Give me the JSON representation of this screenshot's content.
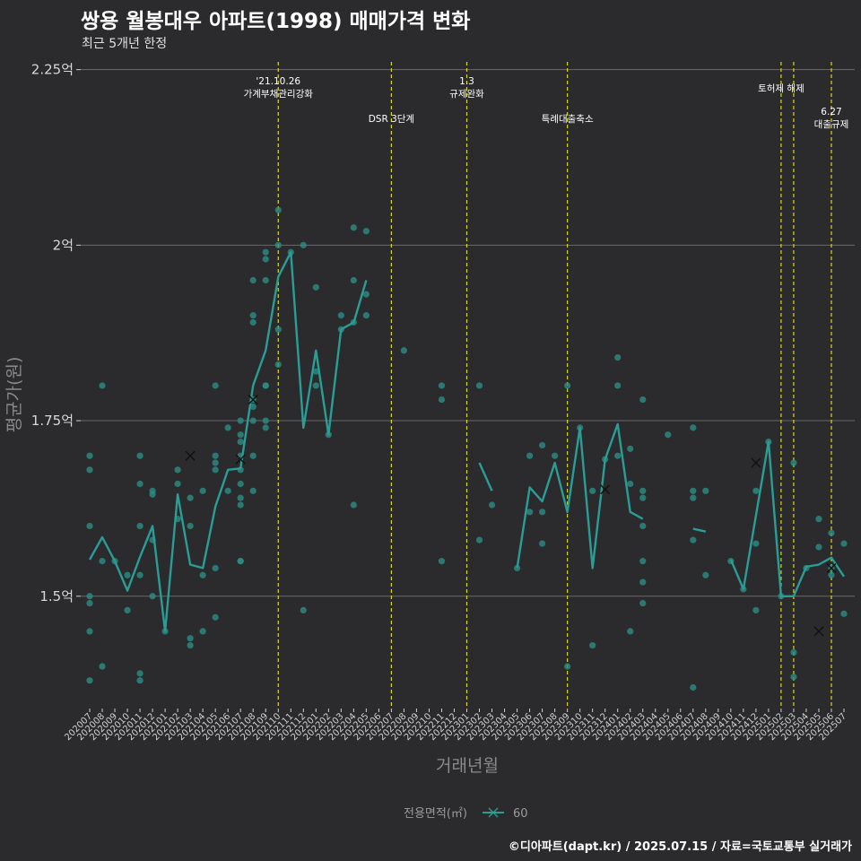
{
  "header": {
    "title": "쌍용 월봉대우 아파트(1998) 매매가격 변화",
    "subtitle": "최근 5개년 한정"
  },
  "footer": {
    "caption": "©디아파트(dapt.kr) / 2025.07.15 / 자료=국토교통부 실거래가"
  },
  "colors": {
    "background": "#2b2b2d",
    "series": "#2a9d96",
    "points": "#2a8f85",
    "event_line": "#d8d820",
    "grid": "#6a6a6a"
  },
  "chart_data": {
    "type": "line",
    "xlabel": "거래년월",
    "ylabel": "평균가(원)",
    "ylim": [
      1.34,
      2.27
    ],
    "yticks": [
      {
        "value": 1.5,
        "label": "1.5억"
      },
      {
        "value": 1.75,
        "label": "1.75억"
      },
      {
        "value": 2.0,
        "label": "2억"
      },
      {
        "value": 2.25,
        "label": "2.25억"
      }
    ],
    "grid": "horizontal",
    "legend": {
      "title": "전용면적(㎡)",
      "label": "60",
      "placement": "bottom"
    },
    "months": [
      "202007",
      "202008",
      "202009",
      "202010",
      "202011",
      "202012",
      "202101",
      "202102",
      "202103",
      "202104",
      "202105",
      "202106",
      "202107",
      "202108",
      "202109",
      "202110",
      "202111",
      "202112",
      "202201",
      "202202",
      "202203",
      "202204",
      "202205",
      "202206",
      "202207",
      "202208",
      "202209",
      "202210",
      "202211",
      "202212",
      "202301",
      "202302",
      "202303",
      "202304",
      "202305",
      "202306",
      "202307",
      "202308",
      "202309",
      "202310",
      "202311",
      "202312",
      "202401",
      "202402",
      "202403",
      "202404",
      "202405",
      "202406",
      "202407",
      "202408",
      "202409",
      "202410",
      "202411",
      "202412",
      "202501",
      "202502",
      "202503",
      "202504",
      "202505",
      "202506",
      "202507"
    ],
    "series": [
      {
        "name": "60",
        "segments": [
          [
            [
              "202007",
              1.552
            ],
            [
              "202008",
              1.584
            ],
            [
              "202009",
              1.55
            ],
            [
              "202010",
              1.508
            ],
            [
              "202011",
              1.556
            ],
            [
              "202012",
              1.6
            ],
            [
              "202101",
              1.45
            ],
            [
              "202102",
              1.645
            ],
            [
              "202103",
              1.545
            ],
            [
              "202104",
              1.54
            ],
            [
              "202105",
              1.628
            ],
            [
              "202106",
              1.68
            ],
            [
              "202107",
              1.682
            ],
            [
              "202108",
              1.8
            ],
            [
              "202109",
              1.85
            ],
            [
              "202110",
              1.955
            ],
            [
              "202111",
              1.99
            ],
            [
              "202112",
              1.74
            ],
            [
              "202201",
              1.85
            ],
            [
              "202202",
              1.73
            ],
            [
              "202203",
              1.88
            ],
            [
              "202204",
              1.89
            ],
            [
              "202205",
              1.95
            ]
          ],
          [
            [
              "202302",
              1.69
            ],
            [
              "202303",
              1.65
            ]
          ],
          [
            [
              "202305",
              1.54
            ],
            [
              "202306",
              1.655
            ],
            [
              "202307",
              1.635
            ],
            [
              "202308",
              1.69
            ],
            [
              "202309",
              1.62
            ],
            [
              "202310",
              1.74
            ],
            [
              "202311",
              1.54
            ],
            [
              "202312",
              1.695
            ],
            [
              "202401",
              1.745
            ],
            [
              "202402",
              1.62
            ],
            [
              "202403",
              1.61
            ]
          ],
          [
            [
              "202407",
              1.596
            ],
            [
              "202408",
              1.592
            ]
          ],
          [
            [
              "202410",
              1.552
            ],
            [
              "202411",
              1.51
            ],
            [
              "202412",
              1.615
            ],
            [
              "202501",
              1.72
            ],
            [
              "202502",
              1.5
            ],
            [
              "202503",
              1.5
            ],
            [
              "202504",
              1.542
            ],
            [
              "202505",
              1.545
            ],
            [
              "202506",
              1.555
            ],
            [
              "202507",
              1.528
            ]
          ]
        ]
      }
    ],
    "points": [
      [
        "202007",
        1.7
      ],
      [
        "202007",
        1.68
      ],
      [
        "202007",
        1.6
      ],
      [
        "202007",
        1.5
      ],
      [
        "202007",
        1.49
      ],
      [
        "202007",
        1.45
      ],
      [
        "202007",
        1.38
      ],
      [
        "202008",
        1.8
      ],
      [
        "202008",
        1.55
      ],
      [
        "202008",
        1.4
      ],
      [
        "202009",
        1.55
      ],
      [
        "202010",
        1.53
      ],
      [
        "202010",
        1.48
      ],
      [
        "202011",
        1.7
      ],
      [
        "202011",
        1.66
      ],
      [
        "202011",
        1.6
      ],
      [
        "202011",
        1.53
      ],
      [
        "202011",
        1.39
      ],
      [
        "202011",
        1.38
      ],
      [
        "202012",
        1.65
      ],
      [
        "202012",
        1.58
      ],
      [
        "202012",
        1.5
      ],
      [
        "202012",
        1.645
      ],
      [
        "202101",
        1.45
      ],
      [
        "202102",
        1.68
      ],
      [
        "202102",
        1.66
      ],
      [
        "202102",
        1.61
      ],
      [
        "202103",
        1.64
      ],
      [
        "202103",
        1.6
      ],
      [
        "202103",
        1.44
      ],
      [
        "202103",
        1.43
      ],
      [
        "202104",
        1.65
      ],
      [
        "202104",
        1.53
      ],
      [
        "202104",
        1.45
      ],
      [
        "202105",
        1.8
      ],
      [
        "202105",
        1.7
      ],
      [
        "202105",
        1.69
      ],
      [
        "202105",
        1.68
      ],
      [
        "202105",
        1.54
      ],
      [
        "202105",
        1.47
      ],
      [
        "202106",
        1.74
      ],
      [
        "202106",
        1.65
      ],
      [
        "202107",
        1.75
      ],
      [
        "202107",
        1.73
      ],
      [
        "202107",
        1.72
      ],
      [
        "202107",
        1.7
      ],
      [
        "202107",
        1.68
      ],
      [
        "202107",
        1.66
      ],
      [
        "202107",
        1.64
      ],
      [
        "202107",
        1.63
      ],
      [
        "202107",
        1.55
      ],
      [
        "202107",
        1.55
      ],
      [
        "202108",
        1.9
      ],
      [
        "202108",
        1.89
      ],
      [
        "202108",
        1.78
      ],
      [
        "202108",
        1.77
      ],
      [
        "202108",
        1.75
      ],
      [
        "202108",
        1.7
      ],
      [
        "202108",
        1.65
      ],
      [
        "202108",
        1.95
      ],
      [
        "202109",
        1.99
      ],
      [
        "202109",
        1.98
      ],
      [
        "202109",
        1.95
      ],
      [
        "202109",
        1.8
      ],
      [
        "202109",
        1.8
      ],
      [
        "202109",
        1.75
      ],
      [
        "202109",
        1.74
      ],
      [
        "202110",
        2.05
      ],
      [
        "202110",
        2.0
      ],
      [
        "202110",
        1.88
      ],
      [
        "202110",
        1.83
      ],
      [
        "202111",
        1.99
      ],
      [
        "202112",
        2.0
      ],
      [
        "202112",
        1.48
      ],
      [
        "202201",
        1.94
      ],
      [
        "202201",
        1.82
      ],
      [
        "202201",
        1.8
      ],
      [
        "202202",
        1.73
      ],
      [
        "202203",
        1.9
      ],
      [
        "202203",
        1.88
      ],
      [
        "202204",
        2.025
      ],
      [
        "202204",
        1.95
      ],
      [
        "202204",
        1.89
      ],
      [
        "202204",
        1.63
      ],
      [
        "202205",
        2.02
      ],
      [
        "202205",
        1.93
      ],
      [
        "202205",
        1.9
      ],
      [
        "202208",
        1.85
      ],
      [
        "202211",
        1.8
      ],
      [
        "202211",
        1.78
      ],
      [
        "202211",
        1.55
      ],
      [
        "202302",
        1.8
      ],
      [
        "202302",
        1.58
      ],
      [
        "202303",
        1.63
      ],
      [
        "202305",
        1.54
      ],
      [
        "202306",
        1.7
      ],
      [
        "202306",
        1.62
      ],
      [
        "202307",
        1.715
      ],
      [
        "202307",
        1.62
      ],
      [
        "202307",
        1.575
      ],
      [
        "202308",
        1.7
      ],
      [
        "202309",
        1.8
      ],
      [
        "202309",
        1.4
      ],
      [
        "202310",
        1.74
      ],
      [
        "202311",
        1.65
      ],
      [
        "202311",
        1.43
      ],
      [
        "202312",
        1.695
      ],
      [
        "202401",
        1.84
      ],
      [
        "202401",
        1.8
      ],
      [
        "202401",
        1.7
      ],
      [
        "202402",
        1.71
      ],
      [
        "202402",
        1.66
      ],
      [
        "202402",
        1.45
      ],
      [
        "202403",
        1.78
      ],
      [
        "202403",
        1.65
      ],
      [
        "202403",
        1.64
      ],
      [
        "202403",
        1.6
      ],
      [
        "202403",
        1.55
      ],
      [
        "202403",
        1.52
      ],
      [
        "202403",
        1.49
      ],
      [
        "202405",
        1.73
      ],
      [
        "202407",
        1.74
      ],
      [
        "202407",
        1.65
      ],
      [
        "202407",
        1.64
      ],
      [
        "202407",
        1.58
      ],
      [
        "202407",
        1.37
      ],
      [
        "202408",
        1.65
      ],
      [
        "202408",
        1.53
      ],
      [
        "202410",
        1.55
      ],
      [
        "202411",
        1.51
      ],
      [
        "202412",
        1.65
      ],
      [
        "202412",
        1.575
      ],
      [
        "202412",
        1.48
      ],
      [
        "202501",
        1.72
      ],
      [
        "202502",
        1.5
      ],
      [
        "202503",
        1.69
      ],
      [
        "202503",
        1.42
      ],
      [
        "202503",
        1.385
      ],
      [
        "202504",
        1.54
      ],
      [
        "202505",
        1.61
      ],
      [
        "202505",
        1.57
      ],
      [
        "202506",
        1.59
      ],
      [
        "202506",
        1.54
      ],
      [
        "202506",
        1.53
      ],
      [
        "202507",
        1.575
      ],
      [
        "202507",
        1.475
      ]
    ],
    "crosses": [
      [
        "202103",
        1.7
      ],
      [
        "202107",
        1.695
      ],
      [
        "202108",
        1.78
      ],
      [
        "202312",
        1.652
      ],
      [
        "202412",
        1.69
      ],
      [
        "202505",
        1.45
      ],
      [
        "202506",
        1.54
      ]
    ],
    "events": [
      {
        "month": "202110",
        "offset": 0.0,
        "lines": [
          "'21.10.26",
          "가계부채관리강화"
        ],
        "row": 0
      },
      {
        "month": "202207",
        "offset": 0.0,
        "lines": [
          "DSR 3단계"
        ],
        "row": 2
      },
      {
        "month": "202301",
        "offset": 0.0,
        "lines": [
          "1.3",
          "규제완화"
        ],
        "row": 0
      },
      {
        "month": "202309",
        "offset": 0.0,
        "lines": [
          "특례대출축소"
        ],
        "row": 2
      },
      {
        "month": "202502",
        "offset": 0.0,
        "lines": [
          "토허제 해제"
        ],
        "row": 1
      },
      {
        "month": "202503",
        "offset": 0.0,
        "lines": [],
        "row": 1
      },
      {
        "month": "202506",
        "offset": 0.0,
        "lines": [
          "6.27",
          "대출규제"
        ],
        "row": 3
      }
    ]
  }
}
